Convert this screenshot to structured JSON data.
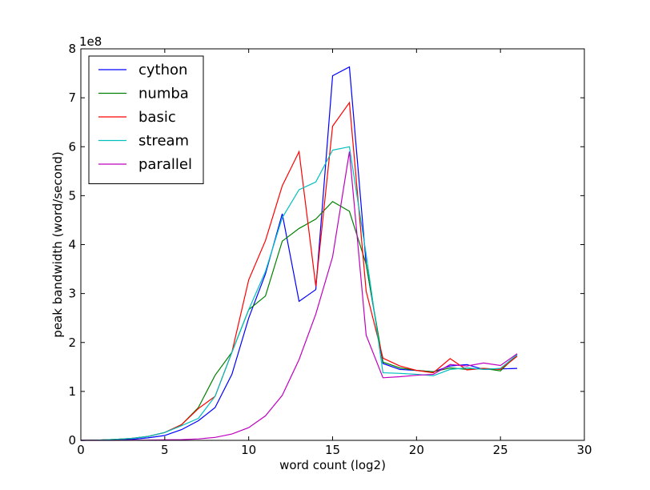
{
  "chart_data": {
    "type": "line",
    "title": "",
    "xlabel": "word count (log2)",
    "ylabel": "peak bandwidth (word/second)",
    "y_scale_label": "1e8",
    "xlim": [
      0,
      30
    ],
    "ylim": [
      0,
      8
    ],
    "x_ticks": [
      0,
      5,
      10,
      15,
      20,
      25,
      30
    ],
    "y_ticks": [
      0,
      1,
      2,
      3,
      4,
      5,
      6,
      7,
      8
    ],
    "x_tick_labels": [
      "0",
      "5",
      "10",
      "15",
      "20",
      "25",
      "30"
    ],
    "y_tick_labels": [
      "0",
      "1",
      "2",
      "3",
      "4",
      "5",
      "6",
      "7",
      "8"
    ],
    "grid": false,
    "legend_position": "top-left",
    "x": [
      0,
      1,
      2,
      3,
      4,
      5,
      6,
      7,
      8,
      9,
      10,
      11,
      12,
      13,
      14,
      15,
      16,
      17,
      18,
      19,
      20,
      21,
      22,
      23,
      24,
      25,
      26
    ],
    "series": [
      {
        "name": "cython",
        "color": "#0000ff",
        "values": [
          0.0,
          0.005,
          0.01,
          0.02,
          0.05,
          0.1,
          0.22,
          0.4,
          0.67,
          1.35,
          2.5,
          3.4,
          4.63,
          2.84,
          3.08,
          7.45,
          7.63,
          3.6,
          1.57,
          1.45,
          1.43,
          1.4,
          1.52,
          1.55,
          1.45,
          1.46,
          1.47
        ]
      },
      {
        "name": "numba",
        "color": "#008000",
        "values": [
          0.0,
          0.005,
          0.02,
          0.04,
          0.08,
          0.16,
          0.32,
          0.67,
          1.33,
          1.8,
          2.67,
          2.95,
          4.07,
          4.33,
          4.52,
          4.88,
          4.68,
          3.6,
          1.6,
          1.48,
          1.43,
          1.4,
          1.48,
          1.45,
          1.47,
          1.42,
          1.75
        ]
      },
      {
        "name": "basic",
        "color": "#ff0000",
        "values": [
          0.0,
          0.005,
          0.02,
          0.04,
          0.08,
          0.16,
          0.32,
          0.65,
          0.9,
          1.8,
          3.28,
          4.08,
          5.2,
          5.9,
          3.15,
          6.42,
          6.9,
          3.05,
          1.68,
          1.52,
          1.43,
          1.38,
          1.67,
          1.44,
          1.47,
          1.45,
          1.72
        ]
      },
      {
        "name": "stream",
        "color": "#00bfbf",
        "values": [
          0.0,
          0.005,
          0.02,
          0.04,
          0.08,
          0.16,
          0.3,
          0.45,
          0.9,
          1.8,
          2.67,
          3.45,
          4.55,
          5.12,
          5.28,
          5.93,
          6.0,
          3.8,
          1.38,
          1.37,
          1.35,
          1.32,
          1.45,
          1.48,
          1.45,
          1.47,
          1.75
        ]
      },
      {
        "name": "parallel",
        "color": "#bf00bf",
        "values": [
          0.0,
          0.0,
          0.0,
          0.005,
          0.005,
          0.01,
          0.015,
          0.03,
          0.06,
          0.13,
          0.26,
          0.5,
          0.92,
          1.65,
          2.58,
          3.75,
          5.9,
          2.15,
          1.28,
          1.3,
          1.33,
          1.35,
          1.55,
          1.52,
          1.58,
          1.53,
          1.77
        ]
      }
    ]
  }
}
